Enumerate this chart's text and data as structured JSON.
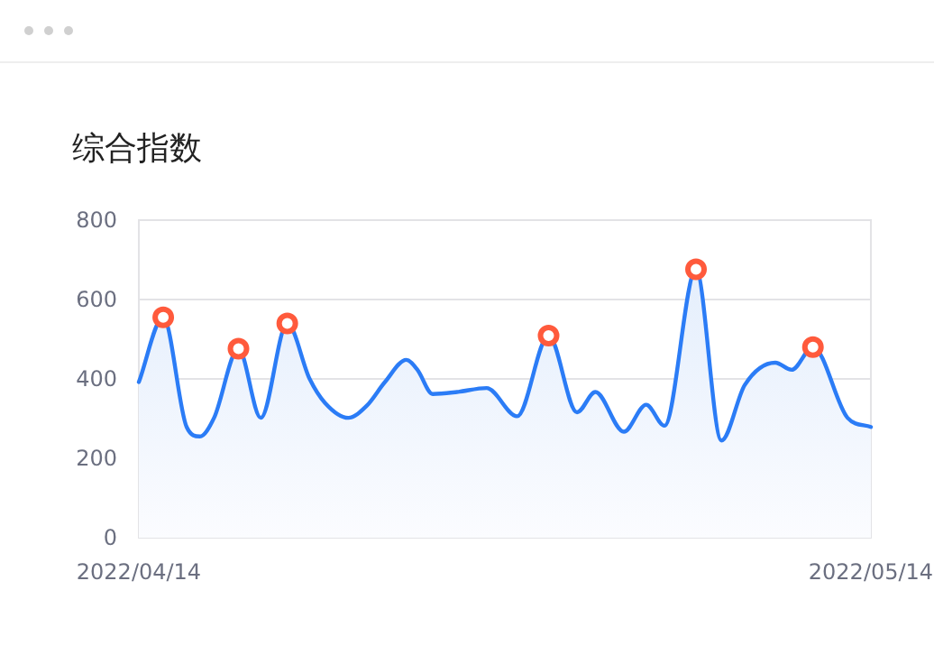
{
  "chart_data": {
    "type": "area",
    "title": "综合指数",
    "xlim": [
      "2022-04-14",
      "2022-05-14"
    ],
    "xticks": [
      {
        "value": "2022-04-14",
        "label": "2022/04/14"
      },
      {
        "value": "2022-05-14",
        "label": "2022/05/14"
      }
    ],
    "ylim": [
      0,
      800
    ],
    "yticks": [
      0,
      200,
      400,
      600,
      800
    ],
    "grid": "y",
    "series": [
      {
        "color": "#2b7cf6",
        "x": [
          "2022-04-14T00:00",
          "2022-04-15T00:00",
          "2022-04-15T23:00",
          "2022-04-16T12:00",
          "2022-04-17T02:00",
          "2022-04-18T02:00",
          "2022-04-19T00:00",
          "2022-04-20T02:00",
          "2022-04-21T00:00",
          "2022-04-21T15:00",
          "2022-04-22T14:00",
          "2022-04-23T08:00",
          "2022-04-24T02:00",
          "2022-04-24T23:00",
          "2022-04-25T10:00",
          "2022-04-26T01:00",
          "2022-04-27T01:00",
          "2022-04-28T06:00",
          "2022-04-29T12:00",
          "2022-04-30T19:00",
          "2022-05-01T23:00",
          "2022-05-02T17:00",
          "2022-05-03T21:00",
          "2022-05-04T19:00",
          "2022-05-05T13:00",
          "2022-05-06T20:00",
          "2022-05-07T21:00",
          "2022-05-08T20:00",
          "2022-05-10T02:00",
          "2022-05-10T18:00",
          "2022-05-11T15:00",
          "2022-05-13T01:00",
          "2022-05-14T00:00"
        ],
        "values": [
          392,
          555,
          279,
          255,
          302,
          476,
          302,
          540,
          400,
          340,
          302,
          332,
          392,
          448,
          423,
          362,
          367,
          377,
          306,
          509,
          316,
          367,
          267,
          335,
          282,
          676,
          245,
          385,
          441,
          423,
          480,
          302,
          279
        ]
      },
      {
        "type": "scatter",
        "color": "#ff5a3c",
        "marker": "circle",
        "x": [
          "2022-04-15T00:00",
          "2022-04-18T02:00",
          "2022-04-20T02:00",
          "2022-04-30T19:00",
          "2022-05-06T20:00",
          "2022-05-11T15:00"
        ],
        "values": [
          555,
          476,
          540,
          509,
          676,
          480
        ]
      }
    ]
  }
}
